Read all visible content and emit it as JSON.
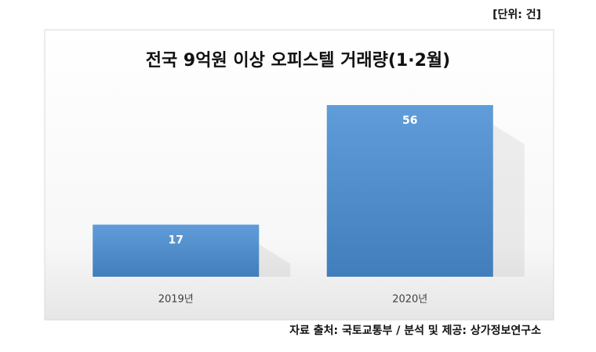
{
  "chart_data": {
    "type": "bar",
    "title": "전국 9억원 이상 오피스텔 거래량(1·2월)",
    "unit_label": "[단위: 건]",
    "categories": [
      "2019년",
      "2020년"
    ],
    "values": [
      17,
      56
    ],
    "color": "#4a8fd4",
    "source": "자료 출처: 국토교통부 / 분석 및 제공: 상가정보연구소"
  }
}
